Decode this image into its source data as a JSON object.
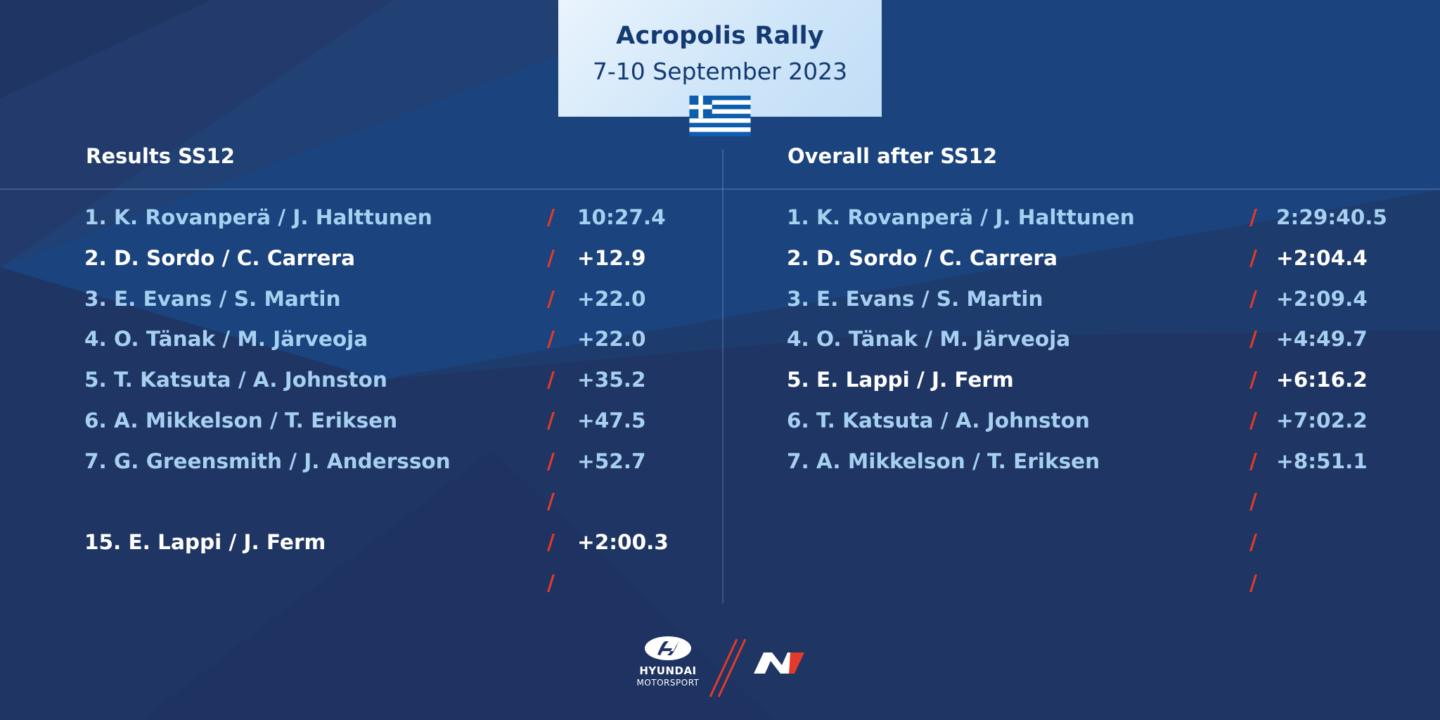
{
  "event": {
    "title": "Acropolis Rally",
    "dates": "7-10 September 2023"
  },
  "flag_icon": "greece-flag-icon",
  "colors": {
    "background": "#1f3563",
    "accent_blue": "#a6d0f0",
    "highlight": "#ffffff",
    "slash_red": "#e23a2b",
    "card": "#d6eafa",
    "card_text": "#143a73"
  },
  "stage_results": {
    "header": "Results SS12",
    "rows": [
      {
        "name": "1. K. Rovanperä / J. Halttunen",
        "time": "10:27.4",
        "highlight": false
      },
      {
        "name": "2. D. Sordo / C. Carrera",
        "time": "+12.9",
        "highlight": true
      },
      {
        "name": "3. E. Evans / S. Martin",
        "time": "+22.0",
        "highlight": false
      },
      {
        "name": "4. O. Tänak / M. Järveoja",
        "time": "+22.0",
        "highlight": false
      },
      {
        "name": "5. T. Katsuta / A. Johnston",
        "time": "+35.2",
        "highlight": false
      },
      {
        "name": "6. A. Mikkelson / T. Eriksen",
        "time": "+47.5",
        "highlight": false
      },
      {
        "name": "7. G. Greensmith / J. Andersson",
        "time": "+52.7",
        "highlight": false
      },
      {
        "name": "",
        "time": "",
        "highlight": false
      },
      {
        "name": "15. E. Lappi / J. Ferm",
        "time": "+2:00.3",
        "highlight": true
      },
      {
        "name": "",
        "time": "",
        "highlight": false
      }
    ]
  },
  "overall": {
    "header": "Overall after SS12",
    "rows": [
      {
        "name": "1. K. Rovanperä / J. Halttunen",
        "time": "2:29:40.5",
        "highlight": false
      },
      {
        "name": "2. D. Sordo / C. Carrera",
        "time": "+2:04.4",
        "highlight": true
      },
      {
        "name": "3. E. Evans / S. Martin",
        "time": "+2:09.4",
        "highlight": false
      },
      {
        "name": "4. O. Tänak / M. Järveoja",
        "time": "+4:49.7",
        "highlight": false
      },
      {
        "name": "5. E. Lappi / J. Ferm",
        "time": "+6:16.2",
        "highlight": true
      },
      {
        "name": "6. T. Katsuta / A. Johnston",
        "time": "+7:02.2",
        "highlight": false
      },
      {
        "name": "7. A. Mikkelson / T. Eriksen",
        "time": "+8:51.1",
        "highlight": false
      },
      {
        "name": "",
        "time": "",
        "highlight": false
      },
      {
        "name": "",
        "time": "",
        "highlight": false
      },
      {
        "name": "",
        "time": "",
        "highlight": false
      }
    ]
  },
  "footer": {
    "brand": "HYUNDAI",
    "sub_brand": "MOTORSPORT",
    "logos": [
      "hyundai-logo-icon",
      "n-logo-icon"
    ]
  }
}
